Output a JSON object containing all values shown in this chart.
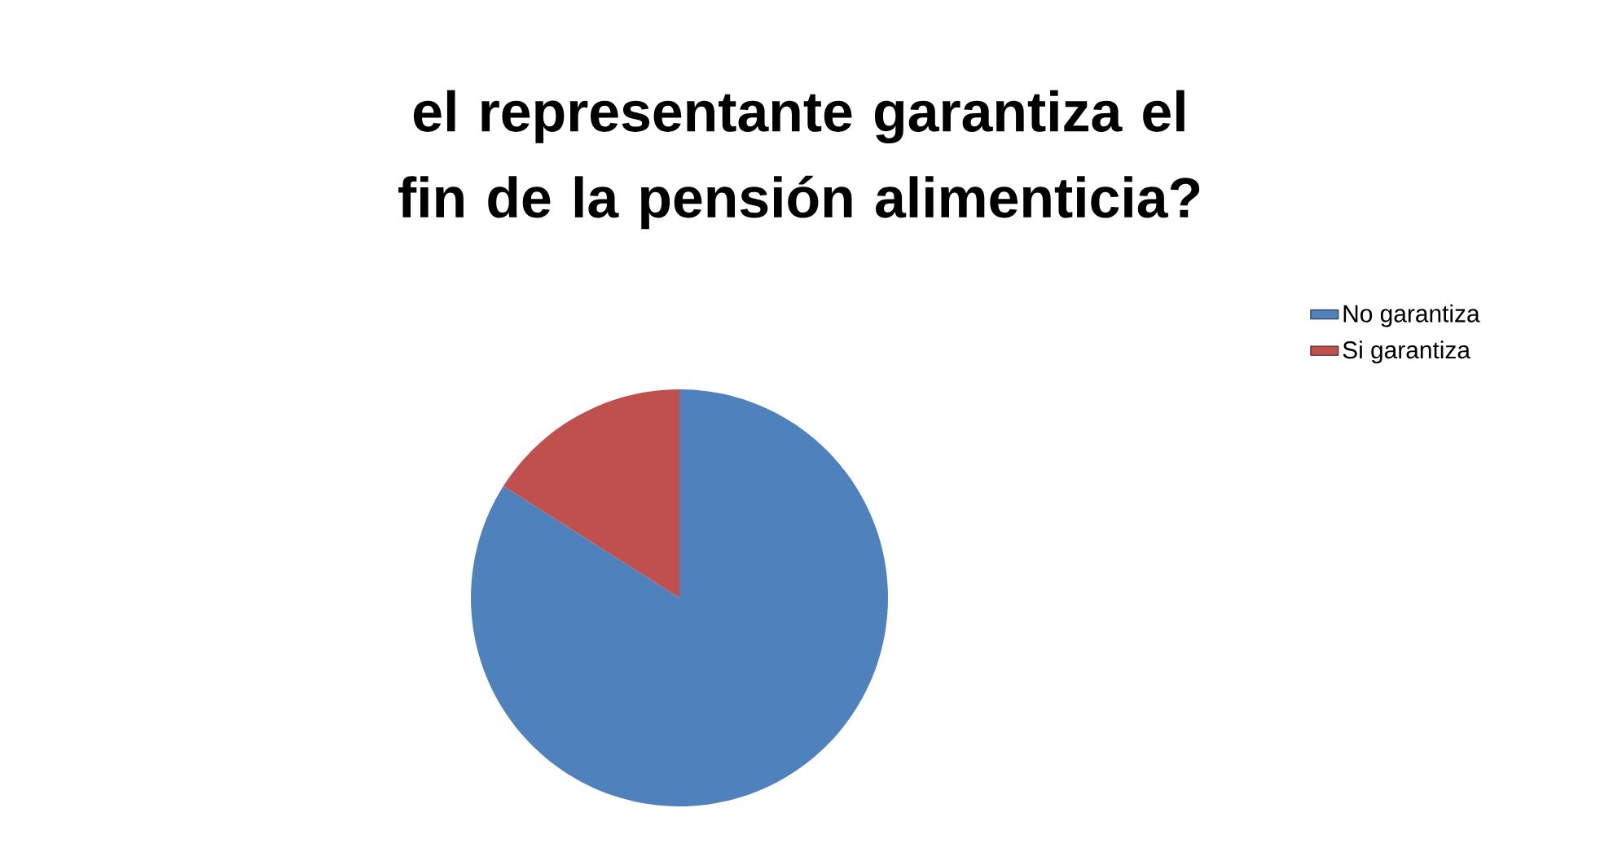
{
  "chart_data": {
    "type": "pie",
    "title": "el representante garantiza el fin de la pensión alimenticia?",
    "categories": [
      "No garantiza",
      "Si garantiza"
    ],
    "values": [
      84,
      16
    ],
    "colors": [
      "#4f81bd",
      "#c0504d"
    ],
    "legend": "right"
  }
}
